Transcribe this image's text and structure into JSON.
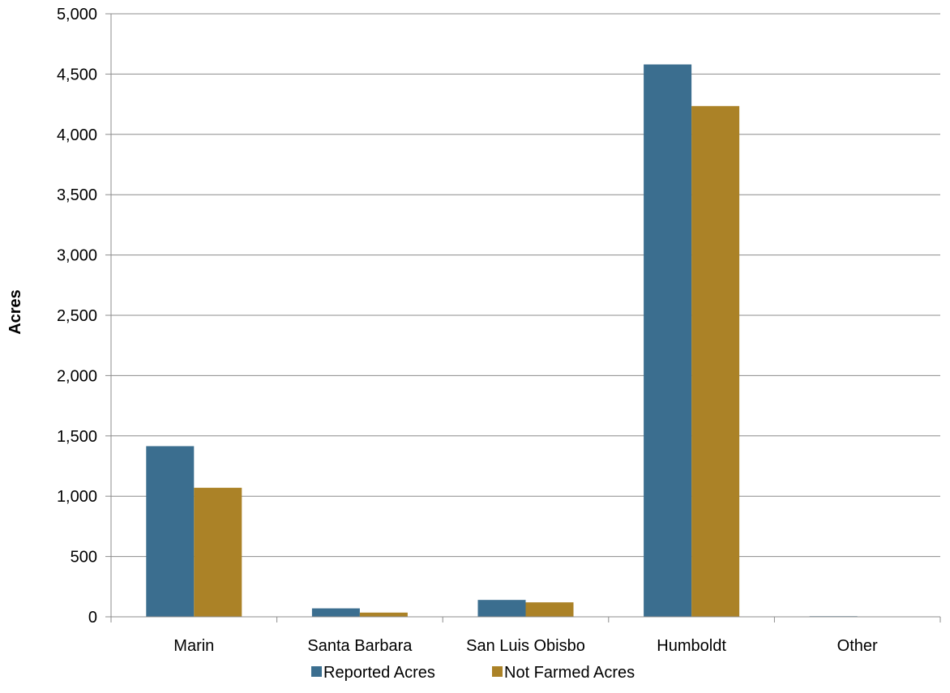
{
  "chart_data": {
    "type": "bar",
    "title": "",
    "xlabel": "",
    "ylabel": "Acres",
    "ylim": [
      0,
      5000
    ],
    "yticks": [
      0,
      500,
      1000,
      1500,
      2000,
      2500,
      3000,
      3500,
      4000,
      4500,
      5000
    ],
    "ytick_labels": [
      "0",
      "500",
      "1,000",
      "1,500",
      "2,000",
      "2,500",
      "3,000",
      "3,500",
      "4,000",
      "4,500",
      "5,000"
    ],
    "categories": [
      "Marin",
      "Santa Barbara",
      "San Luis Obisbo",
      "Humboldt",
      "Other"
    ],
    "series": [
      {
        "name": "Reported Acres",
        "color": "#3b6e8f",
        "values": [
          1415,
          70,
          140,
          4580,
          5
        ]
      },
      {
        "name": "Not Farmed Acres",
        "color": "#ab8227",
        "values": [
          1070,
          35,
          120,
          4235,
          0
        ]
      }
    ],
    "grid": true,
    "legend_position": "bottom"
  }
}
